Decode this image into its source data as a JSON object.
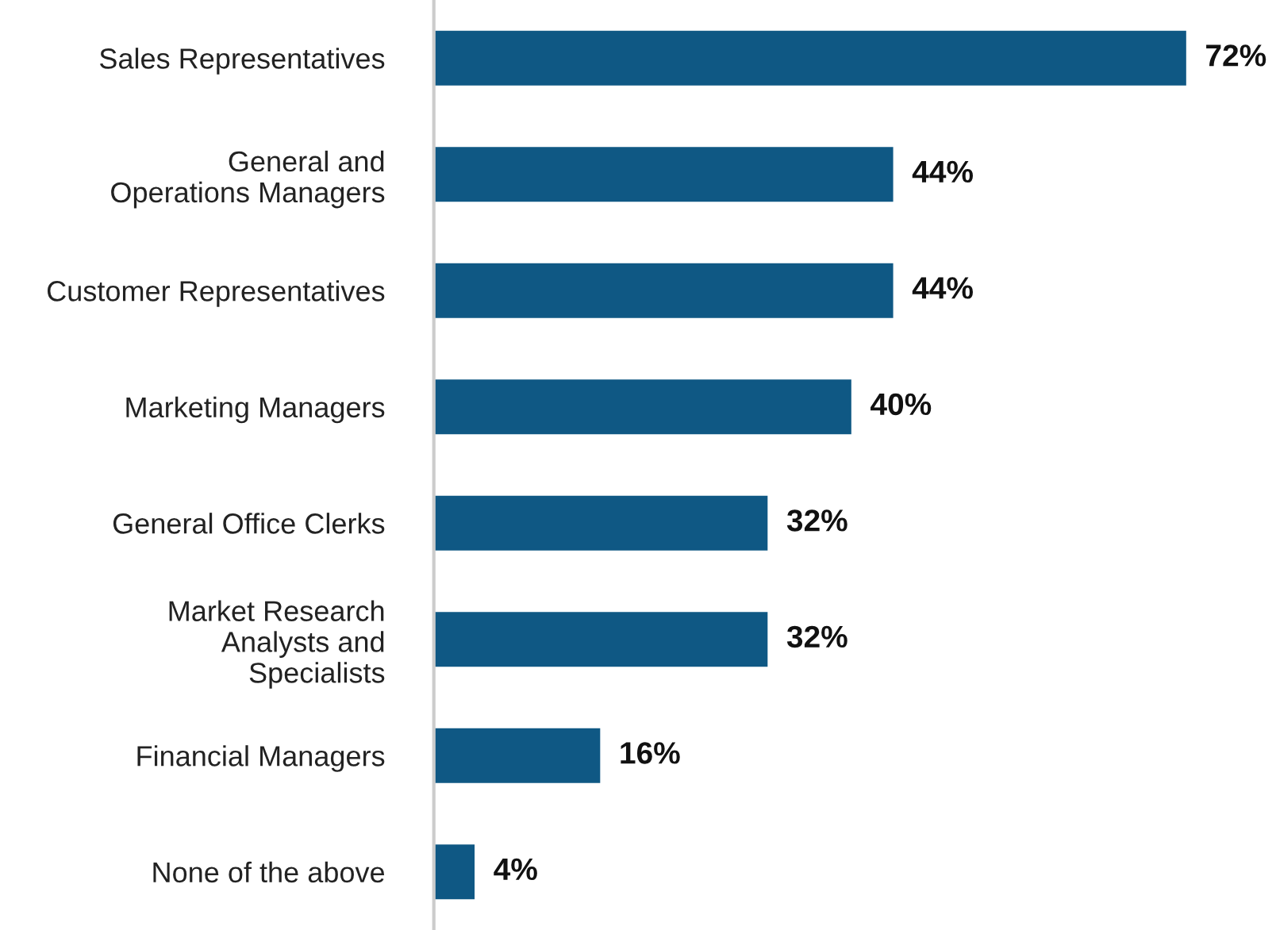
{
  "chart_data": {
    "type": "bar",
    "orientation": "horizontal",
    "categories": [
      "Sales Representatives",
      "General and\nOperations Managers",
      "Customer Representatives",
      "Marketing Managers",
      "General Office Clerks",
      "Market Research\nAnalysts and\nSpecialists",
      "Financial Managers",
      "None of the above"
    ],
    "values": [
      72,
      44,
      44,
      40,
      32,
      32,
      16,
      4
    ],
    "value_labels": [
      "72%",
      "44%",
      "44%",
      "40%",
      "32%",
      "32%",
      "16%",
      "4%"
    ],
    "color": "#0f5884",
    "grid": false,
    "tick_labels": "y"
  }
}
